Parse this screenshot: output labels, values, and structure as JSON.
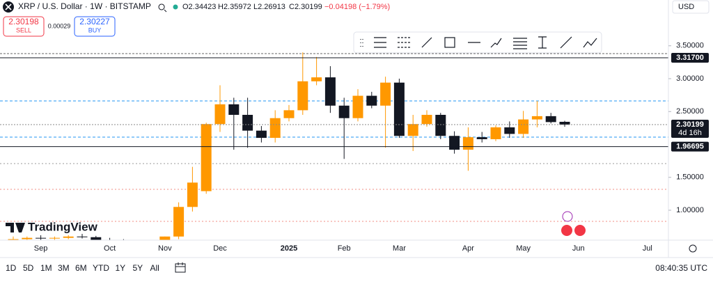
{
  "header": {
    "symbol": "XRP / U.S. Dollar · 1W · BITSTAMP",
    "ohlc": [
      "O2.34423",
      "H2.35972",
      "L2.26913",
      "C2.30199"
    ],
    "change": "−0.04198 (−1.79%)",
    "currency": "USD"
  },
  "trade": {
    "sell_price": "2.30198",
    "sell_label": "SELL",
    "spread": "0.00029",
    "buy_price": "2.30227",
    "buy_label": "BUY"
  },
  "logo": "TradingView",
  "chart_data": {
    "type": "candlestick",
    "categories": [
      null,
      null,
      "Sep",
      null,
      null,
      null,
      null,
      "Oct",
      null,
      null,
      null,
      "Nov",
      null,
      null,
      null,
      "Dec",
      null,
      null,
      null,
      null,
      "2025",
      null,
      null,
      null,
      "Feb",
      null,
      null,
      null,
      "Mar",
      null,
      null,
      null,
      null,
      "Apr",
      null,
      null,
      null,
      "May",
      null,
      null,
      null,
      "Jun",
      null,
      null,
      null,
      null,
      "Jul",
      null
    ],
    "series": [
      {
        "up_color": "#ff9800",
        "down_color": "#131722",
        "open": [
          0.54,
          0.56,
          0.58,
          0.57,
          0.58,
          0.6,
          0.59,
          0.55,
          0.54,
          0.53,
          0.52,
          0.53,
          0.6,
          1.05,
          1.29,
          2.31,
          2.61,
          2.45,
          2.21,
          2.1,
          2.4,
          2.52,
          2.96,
          3.02,
          2.59,
          2.4,
          2.74,
          2.59,
          2.94,
          2.13,
          2.31,
          2.45,
          2.13,
          1.92,
          2.11,
          2.08,
          2.26,
          2.16,
          2.38,
          2.43,
          2.34423,
          null,
          null,
          null,
          null,
          null,
          null,
          null
        ],
        "high": [
          0.6,
          0.6,
          0.62,
          0.6,
          0.62,
          0.64,
          0.61,
          0.58,
          0.56,
          0.55,
          0.55,
          0.6,
          1.12,
          1.66,
          2.33,
          2.9,
          2.71,
          2.71,
          2.28,
          2.52,
          2.6,
          3.4,
          3.33,
          3.19,
          2.71,
          2.84,
          2.8,
          3.03,
          3.0,
          2.45,
          2.52,
          2.48,
          2.2,
          2.26,
          2.19,
          2.29,
          2.35,
          2.51,
          2.66,
          2.48,
          2.35972,
          null,
          null,
          null,
          null,
          null,
          null,
          null
        ],
        "low": [
          0.52,
          0.54,
          0.55,
          0.55,
          0.56,
          0.57,
          0.54,
          0.52,
          0.51,
          0.5,
          0.5,
          0.5,
          0.56,
          0.98,
          1.25,
          2.19,
          1.92,
          1.95,
          2.03,
          2.03,
          2.35,
          2.45,
          2.9,
          2.48,
          1.78,
          2.35,
          2.55,
          1.95,
          2.1,
          1.9,
          2.27,
          2.08,
          1.86,
          1.6,
          2.03,
          2.05,
          2.1,
          2.1,
          2.26,
          2.32,
          2.26913,
          null,
          null,
          null,
          null,
          null,
          null,
          null
        ],
        "close": [
          0.56,
          0.58,
          0.57,
          0.58,
          0.6,
          0.59,
          0.55,
          0.54,
          0.53,
          0.52,
          0.53,
          0.6,
          1.05,
          1.42,
          2.31,
          2.61,
          2.45,
          2.21,
          2.1,
          2.4,
          2.52,
          2.96,
          3.02,
          2.59,
          2.4,
          2.74,
          2.59,
          2.94,
          2.13,
          2.31,
          2.45,
          2.13,
          1.92,
          2.11,
          2.08,
          2.26,
          2.16,
          2.38,
          2.43,
          2.34,
          2.30199,
          null,
          null,
          null,
          null,
          null,
          null,
          null
        ]
      }
    ],
    "ylim": [
      0.545,
      4.196
    ],
    "yticks": [
      {
        "value": 1,
        "label": "1.00000"
      },
      {
        "value": 1.5,
        "label": "1.50000"
      },
      {
        "value": 2.5,
        "label": "2.50000"
      },
      {
        "value": 3,
        "label": "3.00000"
      },
      {
        "value": 3.5,
        "label": "3.50000"
      }
    ],
    "price_tags": [
      {
        "value": 3.317,
        "label": "3.31700"
      },
      {
        "value": 2.30199,
        "label": "2.30199",
        "sub": "4d 16h"
      },
      {
        "value": 1.96695,
        "label": "1.96695"
      }
    ]
  },
  "footer": {
    "timeframes": [
      "1D",
      "5D",
      "1M",
      "3M",
      "6M",
      "YTD",
      "1Y",
      "5Y",
      "All"
    ],
    "clock": "08:40:35 UTC"
  }
}
